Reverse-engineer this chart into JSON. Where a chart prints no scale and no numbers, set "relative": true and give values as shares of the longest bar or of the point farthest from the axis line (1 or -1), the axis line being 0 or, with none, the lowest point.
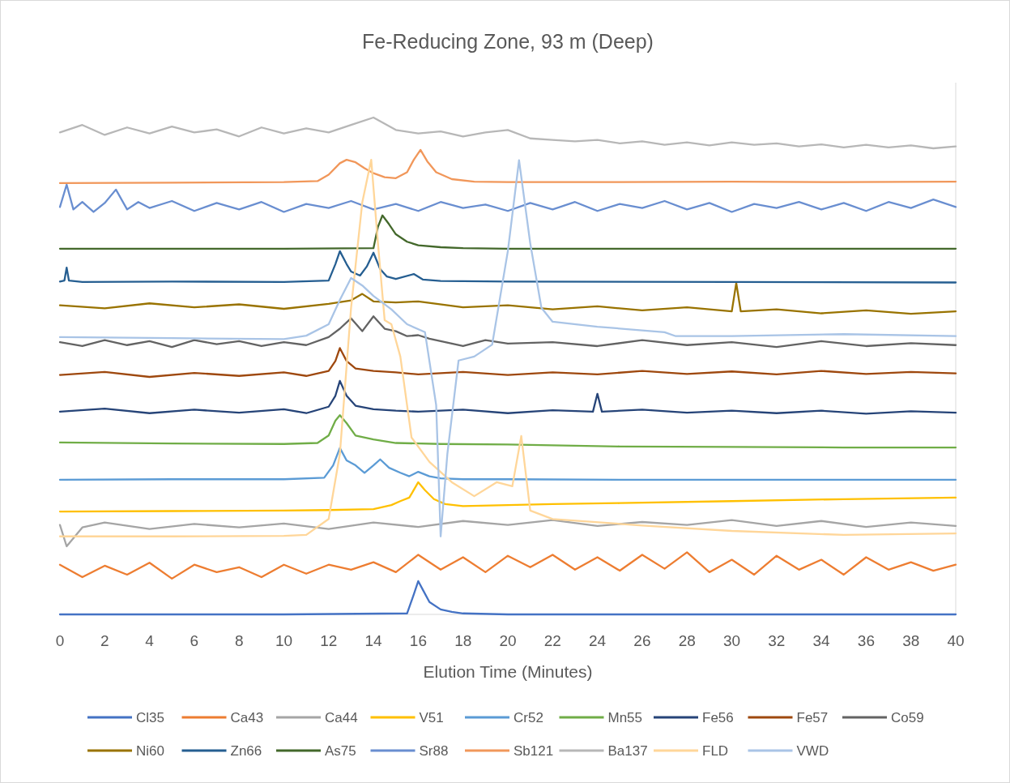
{
  "chart_data": {
    "type": "line",
    "title": "Fe-Reducing Zone, 93 m (Deep)",
    "xlabel": "Elution Time (Minutes)",
    "relative": true,
    "xlim": [
      0,
      40
    ],
    "xticks": [
      0,
      2,
      4,
      6,
      8,
      10,
      12,
      14,
      16,
      18,
      20,
      22,
      24,
      26,
      28,
      30,
      32,
      34,
      36,
      38,
      40
    ],
    "grid": false,
    "legend": "bottom",
    "marker": "none",
    "line_style": "solid",
    "series": [
      {
        "name": "Cl35",
        "color": "#4472c4",
        "x": [
          0,
          10,
          15.5,
          15.8,
          16,
          16.2,
          16.5,
          17,
          17.5,
          18,
          20,
          30,
          40
        ],
        "values": [
          0,
          0,
          0.002,
          0.04,
          0.067,
          0.05,
          0.025,
          0.01,
          0.005,
          0.002,
          0,
          0,
          0
        ]
      },
      {
        "name": "Ca43",
        "color": "#ed7d31",
        "x": [
          0,
          1,
          2,
          3,
          4,
          5,
          6,
          7,
          8,
          9,
          10,
          11,
          12,
          13,
          14,
          15,
          16,
          17,
          18,
          19,
          20,
          21,
          22,
          23,
          24,
          25,
          26,
          27,
          28,
          29,
          30,
          31,
          32,
          33,
          34,
          35,
          36,
          37,
          38,
          39,
          40
        ],
        "values": [
          0.1,
          0.075,
          0.098,
          0.08,
          0.104,
          0.072,
          0.1,
          0.085,
          0.095,
          0.075,
          0.1,
          0.082,
          0.1,
          0.09,
          0.105,
          0.085,
          0.12,
          0.09,
          0.115,
          0.085,
          0.118,
          0.095,
          0.12,
          0.09,
          0.115,
          0.088,
          0.12,
          0.092,
          0.125,
          0.085,
          0.11,
          0.08,
          0.118,
          0.09,
          0.11,
          0.08,
          0.115,
          0.09,
          0.105,
          0.088,
          0.1
        ]
      },
      {
        "name": "Ca44",
        "color": "#a5a5a5",
        "x": [
          0,
          0.3,
          1,
          2,
          4,
          6,
          8,
          10,
          12,
          14,
          16,
          18,
          20,
          22,
          24,
          26,
          28,
          30,
          32,
          34,
          36,
          38,
          40
        ],
        "values": [
          0.18,
          0.137,
          0.175,
          0.185,
          0.172,
          0.182,
          0.175,
          0.183,
          0.172,
          0.185,
          0.176,
          0.188,
          0.18,
          0.19,
          0.178,
          0.186,
          0.18,
          0.19,
          0.178,
          0.188,
          0.176,
          0.185,
          0.178
        ]
      },
      {
        "name": "V51",
        "color": "#ffc000",
        "x": [
          0,
          5,
          10,
          12,
          14,
          14.8,
          15.2,
          15.6,
          16,
          16.3,
          16.7,
          17.2,
          18,
          20,
          22,
          25,
          30,
          35,
          40
        ],
        "values": [
          0.207,
          0.208,
          0.209,
          0.21,
          0.212,
          0.22,
          0.228,
          0.235,
          0.266,
          0.25,
          0.232,
          0.222,
          0.218,
          0.22,
          0.222,
          0.224,
          0.228,
          0.232,
          0.235
        ]
      },
      {
        "name": "Cr52",
        "color": "#5b9bd5",
        "x": [
          0,
          5,
          10,
          11.8,
          12.2,
          12.5,
          12.8,
          13.2,
          13.6,
          14,
          14.3,
          14.7,
          15.2,
          15.6,
          16,
          16.5,
          17,
          18,
          20,
          25,
          30,
          35,
          40
        ],
        "values": [
          0.271,
          0.272,
          0.272,
          0.275,
          0.3,
          0.335,
          0.31,
          0.3,
          0.285,
          0.3,
          0.312,
          0.295,
          0.285,
          0.278,
          0.287,
          0.278,
          0.274,
          0.272,
          0.272,
          0.271,
          0.271,
          0.271,
          0.271
        ]
      },
      {
        "name": "Mn55",
        "color": "#70ad47",
        "x": [
          0,
          5,
          10,
          11.5,
          12,
          12.3,
          12.5,
          12.8,
          13.2,
          14,
          15,
          17,
          20,
          25,
          30,
          35,
          40
        ],
        "values": [
          0.346,
          0.344,
          0.343,
          0.345,
          0.36,
          0.39,
          0.401,
          0.385,
          0.36,
          0.352,
          0.345,
          0.343,
          0.342,
          0.338,
          0.337,
          0.336,
          0.336
        ]
      },
      {
        "name": "Fe56",
        "color": "#264478",
        "x": [
          0,
          2,
          4,
          6,
          8,
          10,
          11,
          12,
          12.3,
          12.5,
          12.8,
          13.2,
          14,
          15,
          16,
          18,
          20,
          22,
          23.8,
          24,
          24.2,
          26,
          28,
          30,
          32,
          34,
          36,
          38,
          40
        ],
        "values": [
          0.408,
          0.414,
          0.405,
          0.412,
          0.406,
          0.413,
          0.405,
          0.418,
          0.44,
          0.47,
          0.44,
          0.42,
          0.413,
          0.41,
          0.408,
          0.412,
          0.405,
          0.411,
          0.408,
          0.444,
          0.408,
          0.412,
          0.406,
          0.41,
          0.405,
          0.41,
          0.404,
          0.409,
          0.406
        ]
      },
      {
        "name": "Fe57",
        "color": "#9e480e",
        "x": [
          0,
          2,
          4,
          6,
          8,
          10,
          11,
          12,
          12.3,
          12.5,
          12.8,
          13.2,
          14,
          15,
          16,
          18,
          20,
          22,
          24,
          26,
          28,
          30,
          32,
          34,
          36,
          38,
          40
        ],
        "values": [
          0.482,
          0.488,
          0.478,
          0.486,
          0.48,
          0.487,
          0.48,
          0.49,
          0.51,
          0.536,
          0.51,
          0.495,
          0.49,
          0.487,
          0.483,
          0.488,
          0.482,
          0.487,
          0.483,
          0.49,
          0.484,
          0.489,
          0.483,
          0.49,
          0.484,
          0.488,
          0.485
        ]
      },
      {
        "name": "Co59",
        "color": "#636363",
        "x": [
          0,
          1,
          2,
          3,
          4,
          5,
          6,
          7,
          8,
          9,
          10,
          11,
          12,
          12.5,
          13,
          13.5,
          14,
          14.5,
          15,
          15.5,
          16,
          16.5,
          17,
          18,
          19,
          20,
          22,
          24,
          26,
          28,
          30,
          32,
          34,
          36,
          38,
          40
        ],
        "values": [
          0.548,
          0.54,
          0.552,
          0.542,
          0.55,
          0.538,
          0.552,
          0.544,
          0.55,
          0.54,
          0.548,
          0.542,
          0.558,
          0.575,
          0.596,
          0.57,
          0.6,
          0.575,
          0.57,
          0.56,
          0.562,
          0.555,
          0.55,
          0.54,
          0.552,
          0.545,
          0.548,
          0.54,
          0.552,
          0.542,
          0.548,
          0.538,
          0.55,
          0.54,
          0.546,
          0.542
        ]
      },
      {
        "name": "Ni60",
        "color": "#997300",
        "x": [
          0,
          2,
          4,
          6,
          8,
          10,
          12,
          13,
          13.5,
          14,
          15,
          16,
          18,
          20,
          22,
          24,
          26,
          28,
          30,
          30.2,
          30.4,
          32,
          34,
          36,
          38,
          40
        ],
        "values": [
          0.622,
          0.616,
          0.626,
          0.618,
          0.624,
          0.615,
          0.625,
          0.632,
          0.645,
          0.63,
          0.628,
          0.63,
          0.618,
          0.622,
          0.614,
          0.62,
          0.612,
          0.618,
          0.61,
          0.667,
          0.61,
          0.614,
          0.606,
          0.612,
          0.605,
          0.61
        ]
      },
      {
        "name": "Zn66",
        "color": "#255e91",
        "x": [
          0,
          0.2,
          0.3,
          0.4,
          1,
          5,
          10,
          12,
          12.3,
          12.5,
          12.8,
          13,
          13.4,
          13.7,
          14,
          14.3,
          14.6,
          15,
          15.8,
          16.2,
          17,
          20,
          30,
          40
        ],
        "values": [
          0.67,
          0.672,
          0.698,
          0.672,
          0.669,
          0.67,
          0.669,
          0.672,
          0.705,
          0.731,
          0.705,
          0.69,
          0.682,
          0.7,
          0.728,
          0.695,
          0.68,
          0.675,
          0.685,
          0.674,
          0.671,
          0.67,
          0.669,
          0.668
        ]
      },
      {
        "name": "As75",
        "color": "#43682b",
        "x": [
          0,
          10,
          14,
          14.2,
          14.4,
          14.7,
          15,
          15.5,
          16,
          17,
          18,
          20,
          30,
          40
        ],
        "values": [
          0.736,
          0.736,
          0.737,
          0.78,
          0.803,
          0.785,
          0.765,
          0.75,
          0.743,
          0.739,
          0.737,
          0.736,
          0.736,
          0.736
        ]
      },
      {
        "name": "Sr88",
        "color": "#698ed0",
        "x": [
          0,
          0.3,
          0.6,
          1,
          1.5,
          2,
          2.5,
          3,
          3.5,
          4,
          5,
          6,
          7,
          8,
          9,
          10,
          11,
          12,
          13,
          14,
          15,
          16,
          17,
          18,
          19,
          20,
          21,
          22,
          23,
          24,
          25,
          26,
          27,
          28,
          29,
          30,
          31,
          32,
          33,
          34,
          35,
          36,
          37,
          38,
          39,
          40
        ],
        "values": [
          0.82,
          0.865,
          0.815,
          0.83,
          0.81,
          0.828,
          0.855,
          0.815,
          0.83,
          0.818,
          0.832,
          0.812,
          0.828,
          0.815,
          0.83,
          0.81,
          0.826,
          0.818,
          0.832,
          0.815,
          0.826,
          0.812,
          0.83,
          0.818,
          0.825,
          0.812,
          0.828,
          0.815,
          0.83,
          0.812,
          0.826,
          0.818,
          0.832,
          0.815,
          0.828,
          0.81,
          0.826,
          0.818,
          0.83,
          0.815,
          0.828,
          0.812,
          0.83,
          0.818,
          0.835,
          0.82
        ]
      },
      {
        "name": "Sb121",
        "color": "#f1975a",
        "x": [
          0,
          5,
          10,
          11.5,
          12,
          12.5,
          12.8,
          13.2,
          13.6,
          14,
          14.5,
          15,
          15.5,
          15.8,
          16.1,
          16.4,
          16.8,
          17.5,
          18.5,
          20,
          25,
          30,
          35,
          40
        ],
        "values": [
          0.868,
          0.869,
          0.87,
          0.872,
          0.885,
          0.908,
          0.915,
          0.91,
          0.898,
          0.888,
          0.88,
          0.878,
          0.89,
          0.915,
          0.935,
          0.912,
          0.89,
          0.876,
          0.871,
          0.87,
          0.87,
          0.871,
          0.87,
          0.871
        ]
      },
      {
        "name": "Ba137",
        "color": "#b7b7b7",
        "x": [
          0,
          1,
          2,
          3,
          4,
          5,
          6,
          7,
          8,
          9,
          10,
          11,
          12,
          13,
          14,
          15,
          16,
          17,
          18,
          19,
          20,
          21,
          22,
          23,
          24,
          25,
          26,
          27,
          28,
          29,
          30,
          31,
          32,
          33,
          34,
          35,
          36,
          37,
          38,
          39,
          40
        ],
        "values": [
          0.97,
          0.985,
          0.965,
          0.98,
          0.968,
          0.982,
          0.97,
          0.976,
          0.962,
          0.98,
          0.968,
          0.978,
          0.97,
          0.985,
          1.0,
          0.975,
          0.968,
          0.972,
          0.962,
          0.97,
          0.975,
          0.958,
          0.955,
          0.952,
          0.955,
          0.948,
          0.952,
          0.945,
          0.95,
          0.944,
          0.95,
          0.945,
          0.948,
          0.942,
          0.946,
          0.94,
          0.945,
          0.94,
          0.944,
          0.938,
          0.942
        ]
      },
      {
        "name": "FLD",
        "color": "#ffd699",
        "x": [
          0,
          5,
          10,
          11,
          12,
          12.5,
          13,
          13.5,
          13.9,
          14.2,
          14.5,
          14.8,
          15.2,
          15.7,
          16.5,
          17.5,
          18.5,
          19.5,
          20.2,
          20.6,
          21,
          22,
          26,
          30,
          35,
          40
        ],
        "values": [
          0.157,
          0.157,
          0.158,
          0.16,
          0.192,
          0.323,
          0.617,
          0.829,
          0.915,
          0.747,
          0.592,
          0.584,
          0.519,
          0.356,
          0.307,
          0.266,
          0.238,
          0.266,
          0.258,
          0.359,
          0.209,
          0.192,
          0.179,
          0.168,
          0.16,
          0.163
        ]
      },
      {
        "name": "VWD",
        "color": "#a9c4e6",
        "x": [
          0,
          5,
          10,
          11,
          12,
          12.5,
          13,
          13.5,
          14,
          14.8,
          15.5,
          16.3,
          16.8,
          17,
          17.3,
          17.8,
          18.5,
          19.3,
          20,
          20.5,
          21,
          21.5,
          22,
          24,
          27,
          27.5,
          30,
          35,
          40
        ],
        "values": [
          0.558,
          0.556,
          0.554,
          0.561,
          0.584,
          0.633,
          0.677,
          0.662,
          0.641,
          0.614,
          0.584,
          0.568,
          0.421,
          0.157,
          0.323,
          0.511,
          0.519,
          0.543,
          0.731,
          0.914,
          0.747,
          0.617,
          0.589,
          0.579,
          0.568,
          0.56,
          0.56,
          0.564,
          0.56
        ]
      }
    ]
  }
}
